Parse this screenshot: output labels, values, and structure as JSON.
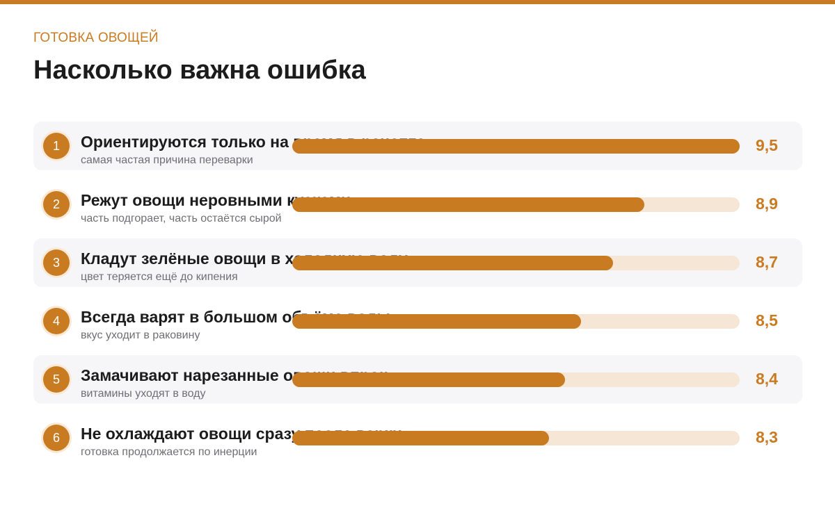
{
  "header": {
    "kicker": "ГОТОВКА ОВОЩЕЙ",
    "title": "Насколько важна ошибка"
  },
  "colors": {
    "accent": "#c97b22",
    "track": "#f6e6d6",
    "row_shaded": "#f6f6f8"
  },
  "chart_data": {
    "type": "bar",
    "orientation": "horizontal",
    "xlim": [
      0,
      9.5
    ],
    "rows": [
      {
        "rank": "1",
        "label": "Ориентируются только на время в рецепте",
        "subtitle": "самая частая причина переварки",
        "value": 9.5,
        "value_label": "9,5"
      },
      {
        "rank": "2",
        "label": "Режут овощи неровными кусками",
        "subtitle": "часть подгорает, часть остаётся сырой",
        "value": 8.9,
        "value_label": "8,9"
      },
      {
        "rank": "3",
        "label": "Кладут зелёные овощи в холодную воду",
        "subtitle": "цвет теряется ещё до кипения",
        "value": 8.7,
        "value_label": "8,7"
      },
      {
        "rank": "4",
        "label": "Всегда варят в большом объёме воды",
        "subtitle": "вкус уходит в раковину",
        "value": 8.5,
        "value_label": "8,5"
      },
      {
        "rank": "5",
        "label": "Замачивают нарезанные овощи впрок",
        "subtitle": "витамины уходят в воду",
        "value": 8.4,
        "value_label": "8,4"
      },
      {
        "rank": "6",
        "label": "Не охлаждают овощи сразу после варки",
        "subtitle": "готовка продолжается по инерции",
        "value": 8.3,
        "value_label": "8,3"
      }
    ]
  }
}
